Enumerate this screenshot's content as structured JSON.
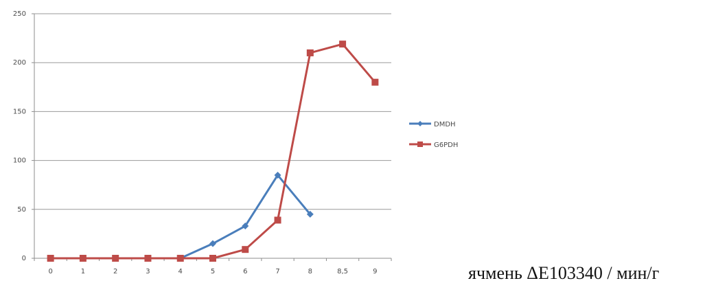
{
  "chart_data": {
    "type": "line",
    "categories": [
      "0",
      "1",
      "2",
      "3",
      "4",
      "5",
      "6",
      "7",
      "8",
      "8,5",
      "9"
    ],
    "series": [
      {
        "name": "DMDH",
        "color": "#4a7ebb",
        "marker": "diamond",
        "values": [
          0,
          0,
          0,
          0,
          0,
          15,
          33,
          85,
          45,
          null,
          null
        ]
      },
      {
        "name": "G6PDH",
        "color": "#be4b48",
        "marker": "square",
        "values": [
          0,
          0,
          0,
          0,
          0,
          0,
          9,
          39,
          210,
          219,
          180
        ]
      }
    ],
    "ylim": [
      0,
      250
    ],
    "yticks": [
      0,
      50,
      100,
      150,
      200,
      250
    ],
    "grid": "horizontal",
    "legend_position": "right",
    "annotation": "ячмень ΔЕ103340 / мин/г"
  }
}
